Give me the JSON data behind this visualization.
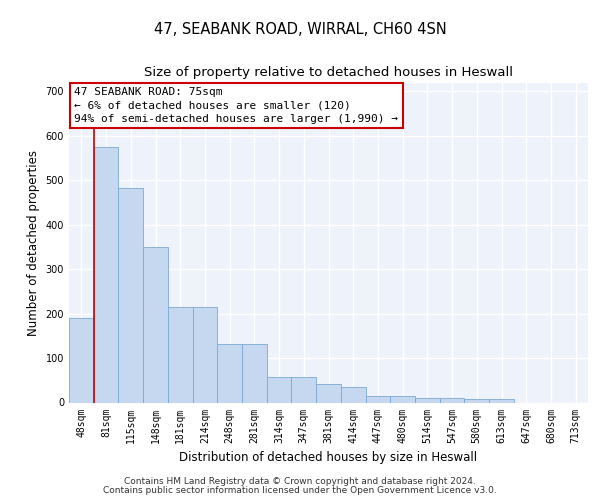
{
  "title": "47, SEABANK ROAD, WIRRAL, CH60 4SN",
  "subtitle": "Size of property relative to detached houses in Heswall",
  "xlabel": "Distribution of detached houses by size in Heswall",
  "ylabel": "Number of detached properties",
  "categories": [
    "48sqm",
    "81sqm",
    "115sqm",
    "148sqm",
    "181sqm",
    "214sqm",
    "248sqm",
    "281sqm",
    "314sqm",
    "347sqm",
    "381sqm",
    "414sqm",
    "447sqm",
    "480sqm",
    "514sqm",
    "547sqm",
    "580sqm",
    "613sqm",
    "647sqm",
    "680sqm",
    "713sqm"
  ],
  "values": [
    190,
    575,
    483,
    350,
    215,
    215,
    132,
    132,
    58,
    58,
    42,
    35,
    15,
    15,
    10,
    10,
    7,
    7,
    0,
    0,
    0
  ],
  "bar_color": "#c5d8f0",
  "bar_edge_color": "#7aaad4",
  "annotation_text": "47 SEABANK ROAD: 75sqm\n← 6% of detached houses are smaller (120)\n94% of semi-detached houses are larger (1,990) →",
  "annotation_box_color": "#ffffff",
  "annotation_box_edge_color": "#cc0000",
  "red_line_x": 0.5,
  "ylim": [
    0,
    720
  ],
  "yticks": [
    0,
    100,
    200,
    300,
    400,
    500,
    600,
    700
  ],
  "footer1": "Contains HM Land Registry data © Crown copyright and database right 2024.",
  "footer2": "Contains public sector information licensed under the Open Government Licence v3.0.",
  "background_color": "#eef2fb",
  "grid_color": "#ffffff",
  "title_fontsize": 10.5,
  "subtitle_fontsize": 9.5,
  "axis_label_fontsize": 8.5,
  "tick_fontsize": 7,
  "annotation_fontsize": 8,
  "footer_fontsize": 6.5
}
